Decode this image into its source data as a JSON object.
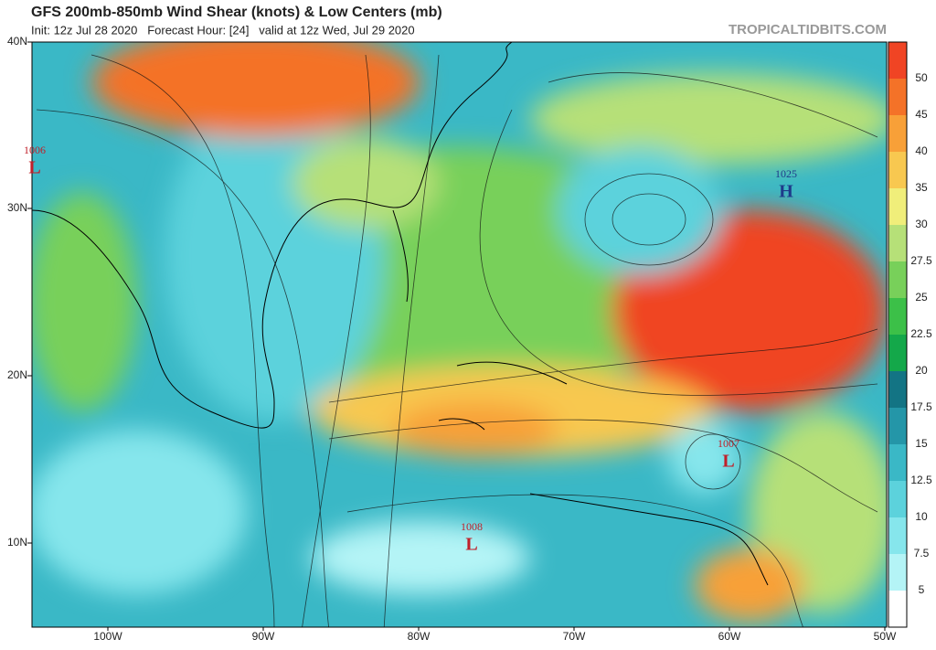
{
  "header": {
    "title": "GFS 200mb-850mb Wind Shear (knots) & Low Centers (mb)",
    "subtitle": "Init: 12z Jul 28 2020   Forecast Hour: [24]   valid at 12z Wed, Jul 29 2020",
    "site": "TROPICALTIDBITS.COM"
  },
  "map": {
    "lat_labels": [
      "40N",
      "30N",
      "20N",
      "10N"
    ],
    "lon_labels": [
      "100W",
      "90W",
      "80W",
      "70W",
      "60W",
      "50W"
    ],
    "centers": [
      {
        "pressure": "1006",
        "symbol": "L"
      },
      {
        "pressure": "1025",
        "symbol": "H"
      },
      {
        "pressure": "1007",
        "symbol": "L"
      },
      {
        "pressure": "1008",
        "symbol": "L"
      }
    ]
  },
  "colorbar": {
    "labels": [
      5,
      7.5,
      10,
      12.5,
      15,
      17.5,
      20,
      22.5,
      25,
      27.5,
      30,
      35,
      40,
      45,
      50
    ],
    "colors": [
      "#ffffff",
      "#b4f4f6",
      "#86e6ec",
      "#5cd2dc",
      "#3ab8c6",
      "#2496a8",
      "#137484",
      "#14a84a",
      "#3cc048",
      "#78d05a",
      "#b6e078",
      "#f0ee7a",
      "#f8c850",
      "#f8a038",
      "#f47228",
      "#f04424"
    ]
  }
}
